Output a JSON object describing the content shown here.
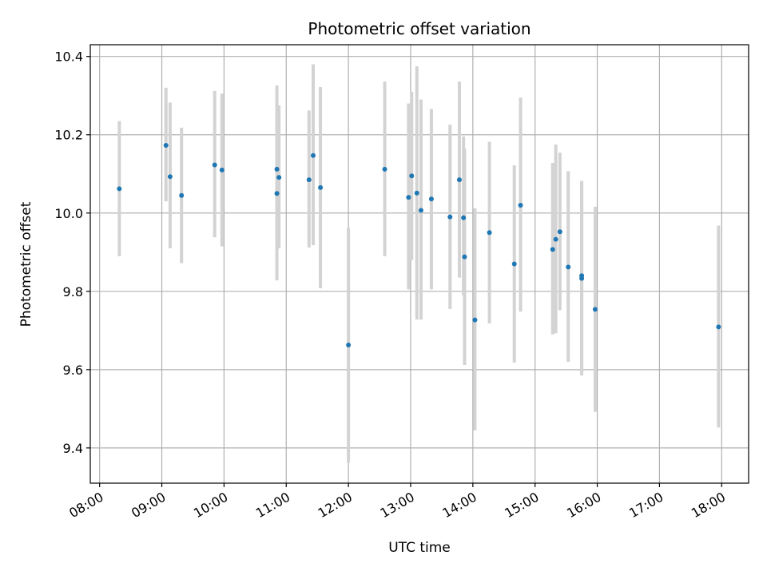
{
  "chart_data": {
    "type": "scatter",
    "title": "Photometric offset variation",
    "xlabel": "UTC time",
    "ylabel": "Photometric offset",
    "grid": true,
    "xlim": [
      "07:51",
      "18:26"
    ],
    "ylim": [
      9.31,
      10.43
    ],
    "x_ticks": [
      "08:00",
      "09:00",
      "10:00",
      "11:00",
      "12:00",
      "13:00",
      "14:00",
      "15:00",
      "16:00",
      "17:00",
      "18:00"
    ],
    "y_ticks": [
      "9.4",
      "9.6",
      "9.8",
      "10.0",
      "10.2",
      "10.4"
    ],
    "colors": {
      "point": "#1f77b4",
      "errorbar": "#d3d3d3",
      "grid": "#b0b0b0"
    },
    "points": [
      {
        "x": "08:19",
        "y": 10.062,
        "yerr": [
          9.89,
          10.235
        ]
      },
      {
        "x": "09:04",
        "y": 10.173,
        "yerr": [
          10.03,
          10.32
        ]
      },
      {
        "x": "09:08",
        "y": 10.093,
        "yerr": [
          9.91,
          10.282
        ]
      },
      {
        "x": "09:19",
        "y": 10.045,
        "yerr": [
          9.872,
          10.218
        ]
      },
      {
        "x": "09:51",
        "y": 10.123,
        "yerr": [
          9.938,
          10.312
        ]
      },
      {
        "x": "09:58",
        "y": 10.11,
        "yerr": [
          9.915,
          10.305
        ]
      },
      {
        "x": "10:51",
        "y": 10.112,
        "yerr": [
          9.915,
          10.326
        ]
      },
      {
        "x": "10:51",
        "y": 10.05,
        "yerr": [
          9.828,
          10.27
        ]
      },
      {
        "x": "10:53",
        "y": 10.091,
        "yerr": [
          9.91,
          10.275
        ]
      },
      {
        "x": "11:22",
        "y": 10.085,
        "yerr": [
          9.912,
          10.262
        ]
      },
      {
        "x": "11:26",
        "y": 10.147,
        "yerr": [
          9.918,
          10.38
        ]
      },
      {
        "x": "11:33",
        "y": 10.065,
        "yerr": [
          9.808,
          10.322
        ]
      },
      {
        "x": "12:00",
        "y": 9.663,
        "yerr": [
          9.362,
          9.962
        ]
      },
      {
        "x": "12:35",
        "y": 10.112,
        "yerr": [
          9.89,
          10.336
        ]
      },
      {
        "x": "12:58",
        "y": 10.04,
        "yerr": [
          9.805,
          10.28
        ]
      },
      {
        "x": "13:01",
        "y": 10.095,
        "yerr": [
          9.88,
          10.31
        ]
      },
      {
        "x": "13:06",
        "y": 10.051,
        "yerr": [
          9.728,
          10.375
        ]
      },
      {
        "x": "13:10",
        "y": 10.007,
        "yerr": [
          9.728,
          10.29
        ]
      },
      {
        "x": "13:20",
        "y": 10.036,
        "yerr": [
          9.805,
          10.266
        ]
      },
      {
        "x": "13:38",
        "y": 9.99,
        "yerr": [
          9.755,
          10.226
        ]
      },
      {
        "x": "13:47",
        "y": 10.085,
        "yerr": [
          9.835,
          10.336
        ]
      },
      {
        "x": "13:51",
        "y": 9.988,
        "yerr": [
          9.79,
          10.196
        ]
      },
      {
        "x": "13:52",
        "y": 9.888,
        "yerr": [
          9.612,
          10.165
        ]
      },
      {
        "x": "14:02",
        "y": 9.727,
        "yerr": [
          9.445,
          10.012
        ]
      },
      {
        "x": "14:16",
        "y": 9.95,
        "yerr": [
          9.718,
          10.182
        ]
      },
      {
        "x": "14:40",
        "y": 9.87,
        "yerr": [
          9.618,
          10.122
        ]
      },
      {
        "x": "14:46",
        "y": 10.02,
        "yerr": [
          9.748,
          10.295
        ]
      },
      {
        "x": "15:17",
        "y": 9.907,
        "yerr": [
          9.69,
          10.128
        ]
      },
      {
        "x": "15:20",
        "y": 9.933,
        "yerr": [
          9.693,
          10.175
        ]
      },
      {
        "x": "15:24",
        "y": 9.952,
        "yerr": [
          9.752,
          10.154
        ]
      },
      {
        "x": "15:32",
        "y": 9.862,
        "yerr": [
          9.62,
          10.107
        ]
      },
      {
        "x": "15:45",
        "y": 9.84,
        "yerr": [
          9.585,
          10.082
        ]
      },
      {
        "x": "15:45",
        "y": 9.833,
        "yerr": [
          9.59,
          10.075
        ]
      },
      {
        "x": "15:58",
        "y": 9.754,
        "yerr": [
          9.492,
          10.016
        ]
      },
      {
        "x": "17:57",
        "y": 9.709,
        "yerr": [
          9.452,
          9.968
        ]
      }
    ]
  }
}
